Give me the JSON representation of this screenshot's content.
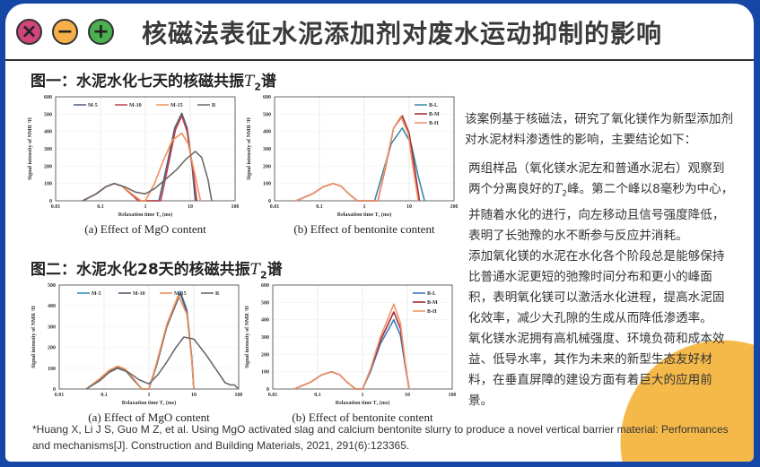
{
  "header": {
    "title": "核磁法表征水泥添加剂对废水运动抑制的影响",
    "buttons": [
      {
        "label": "×",
        "color": "#d0457a"
      },
      {
        "label": "−",
        "color": "#f5b04a"
      },
      {
        "label": "+",
        "color": "#4caf50"
      }
    ]
  },
  "section1": {
    "title": "图一：水泥水化七天的核磁共振",
    "symbol": "T",
    "sub": "2",
    "suffix": "谱"
  },
  "section2": {
    "title": "图二：水泥水化28天的核磁共振",
    "symbol": "T",
    "sub": "2",
    "suffix": "谱"
  },
  "text": {
    "intro": "该案例基于核磁法，研究了氧化镁作为新型添加剂对水泥材料渗透性的影响，主要结论如下：",
    "p1a": "两组样品（氧化镁水泥左和普通水泥右）观察到两个分离良好的",
    "p1sym": "T",
    "p1sub": "2",
    "p1b": "峰。第二个峰以8毫秒为中心，并随着水化的进行，向左移动且信号强度降低，表明了长弛豫的水不断参与反应并消耗。",
    "p2": "添加氧化镁的水泥在水化各个阶段总是能够保持比普通水泥更短的弛豫时间分布和更小的峰面积，表明氧化镁可以激活水化进程，提高水泥固化效率，减少大孔隙的生成从而降低渗透率。",
    "p3": "氧化镁水泥拥有高机械强度、环境负荷和成本效益、低导水率，其作为未来的新型生态友好材料，在垂直屏障的建设方面有着巨大的应用前景。"
  },
  "reference": "*Huang X,  Li J S,  Guo M Z, et al. Using MgO activated slag and calcium bentonite slurry to produce a novel vertical barrier material: Performances and mechanisms[J]. Construction and Building Materials, 2021, 291(6):123365.",
  "chart_data": [
    {
      "type": "line",
      "title": "(a) Effect of MgO content",
      "xlabel": "Relaxation time T₂ (ms)",
      "ylabel": "Signal intensity of NMR ¹H",
      "xscale": "log",
      "xlim": [
        0.01,
        100
      ],
      "ylim": [
        0,
        600
      ],
      "xticks": [
        "0.01",
        "0.1",
        "1",
        "10",
        "100"
      ],
      "yticks": [
        "0",
        "100",
        "200",
        "300",
        "400",
        "500",
        "600"
      ],
      "grid": true,
      "legend": "top",
      "series": [
        {
          "name": "M-5",
          "color": "#4a5f7a",
          "points": [
            [
              0.04,
              0
            ],
            [
              0.08,
              40
            ],
            [
              0.13,
              80
            ],
            [
              0.2,
              100
            ],
            [
              0.3,
              85
            ],
            [
              0.45,
              45
            ],
            [
              0.7,
              0
            ],
            [
              2,
              0
            ],
            [
              3,
              200
            ],
            [
              4.5,
              420
            ],
            [
              6.5,
              505
            ],
            [
              8.5,
              420
            ],
            [
              11,
              200
            ],
            [
              13,
              0
            ]
          ]
        },
        {
          "name": "M-10",
          "color": "#c0404a",
          "points": [
            [
              0.04,
              0
            ],
            [
              0.08,
              40
            ],
            [
              0.13,
              80
            ],
            [
              0.2,
              100
            ],
            [
              0.3,
              85
            ],
            [
              0.45,
              45
            ],
            [
              0.7,
              0
            ],
            [
              2.2,
              0
            ],
            [
              3.2,
              200
            ],
            [
              4.7,
              410
            ],
            [
              6.5,
              490
            ],
            [
              8.5,
              400
            ],
            [
              11.5,
              180
            ],
            [
              14,
              0
            ]
          ]
        },
        {
          "name": "M-15",
          "color": "#f0905a",
          "points": [
            [
              0.04,
              0
            ],
            [
              0.08,
              40
            ],
            [
              0.13,
              80
            ],
            [
              0.2,
              100
            ],
            [
              0.3,
              85
            ],
            [
              0.5,
              40
            ],
            [
              0.8,
              0
            ],
            [
              1,
              0
            ],
            [
              1.6,
              100
            ],
            [
              2.5,
              230
            ],
            [
              4,
              350
            ],
            [
              6.5,
              390
            ],
            [
              9,
              330
            ],
            [
              12,
              180
            ],
            [
              17,
              0
            ]
          ]
        },
        {
          "name": "R",
          "color": "#6a6a6a",
          "points": [
            [
              0.04,
              0
            ],
            [
              0.08,
              40
            ],
            [
              0.13,
              80
            ],
            [
              0.2,
              100
            ],
            [
              0.35,
              80
            ],
            [
              0.6,
              50
            ],
            [
              1,
              40
            ],
            [
              1.6,
              70
            ],
            [
              3,
              130
            ],
            [
              5,
              180
            ],
            [
              8,
              240
            ],
            [
              13,
              285
            ],
            [
              18,
              250
            ],
            [
              25,
              120
            ],
            [
              30,
              0
            ]
          ]
        }
      ]
    },
    {
      "type": "line",
      "title": "(b) Effect of bentonite content",
      "xlabel": "Relaxation time T₂ (ms)",
      "ylabel": "Signal intensity of NMR ¹H",
      "xscale": "log",
      "xlim": [
        0.01,
        100
      ],
      "ylim": [
        0,
        600
      ],
      "xticks": [
        "0.01",
        "0.1",
        "1",
        "10",
        "100"
      ],
      "yticks": [
        "0",
        "100",
        "200",
        "300",
        "400",
        "500",
        "600"
      ],
      "grid": true,
      "legend": "top-right",
      "series": [
        {
          "name": "B-L",
          "color": "#3a8aa8",
          "points": [
            [
              0.03,
              0
            ],
            [
              0.07,
              40
            ],
            [
              0.12,
              80
            ],
            [
              0.2,
              100
            ],
            [
              0.3,
              85
            ],
            [
              0.45,
              40
            ],
            [
              0.7,
              0
            ],
            [
              1.7,
              0
            ],
            [
              2.5,
              150
            ],
            [
              4,
              330
            ],
            [
              7,
              420
            ],
            [
              11,
              330
            ],
            [
              16,
              140
            ],
            [
              22,
              0
            ]
          ]
        },
        {
          "name": "B-M",
          "color": "#a02a30",
          "points": [
            [
              0.03,
              0
            ],
            [
              0.07,
              40
            ],
            [
              0.12,
              80
            ],
            [
              0.2,
              100
            ],
            [
              0.3,
              85
            ],
            [
              0.45,
              40
            ],
            [
              0.7,
              0
            ],
            [
              2,
              0
            ],
            [
              3,
              200
            ],
            [
              4.5,
              420
            ],
            [
              7,
              490
            ],
            [
              10,
              390
            ],
            [
              13,
              200
            ],
            [
              17,
              0
            ]
          ]
        },
        {
          "name": "B-H",
          "color": "#f0956a",
          "points": [
            [
              0.03,
              0
            ],
            [
              0.07,
              40
            ],
            [
              0.12,
              80
            ],
            [
              0.2,
              100
            ],
            [
              0.3,
              85
            ],
            [
              0.45,
              40
            ],
            [
              0.7,
              0
            ],
            [
              2,
              0
            ],
            [
              3,
              210
            ],
            [
              4.5,
              420
            ],
            [
              6.5,
              485
            ],
            [
              9.5,
              390
            ],
            [
              12,
              200
            ],
            [
              16,
              0
            ]
          ]
        }
      ]
    },
    {
      "type": "line",
      "title": "(a) Effect of MgO content",
      "xlabel": "Relaxation time T₂ (ms)",
      "ylabel": "Signal intensity of NMR ¹H",
      "xscale": "log",
      "xlim": [
        0.01,
        100
      ],
      "ylim": [
        0,
        500
      ],
      "xticks": [
        "0.01",
        "0.1",
        "1",
        "10",
        "100"
      ],
      "yticks": [
        "0",
        "100",
        "200",
        "300",
        "400",
        "500"
      ],
      "grid": true,
      "legend": "top",
      "series": [
        {
          "name": "M-5",
          "color": "#3a8ac0",
          "points": [
            [
              0.04,
              0
            ],
            [
              0.08,
              45
            ],
            [
              0.13,
              85
            ],
            [
              0.2,
              105
            ],
            [
              0.3,
              90
            ],
            [
              0.45,
              45
            ],
            [
              0.7,
              0
            ],
            [
              1,
              0
            ],
            [
              1.5,
              120
            ],
            [
              2.5,
              300
            ],
            [
              5,
              470
            ],
            [
              7,
              380
            ],
            [
              9,
              150
            ],
            [
              10,
              0
            ]
          ]
        },
        {
          "name": "M-10",
          "color": "#555a70",
          "points": [
            [
              0.04,
              0
            ],
            [
              0.08,
              45
            ],
            [
              0.13,
              85
            ],
            [
              0.2,
              105
            ],
            [
              0.3,
              90
            ],
            [
              0.45,
              45
            ],
            [
              0.7,
              0
            ],
            [
              1,
              0
            ],
            [
              1.5,
              120
            ],
            [
              2.5,
              300
            ],
            [
              5,
              460
            ],
            [
              7,
              370
            ],
            [
              9,
              150
            ],
            [
              10,
              0
            ]
          ]
        },
        {
          "name": "M-15",
          "color": "#f0905a",
          "points": [
            [
              0.04,
              0
            ],
            [
              0.08,
              50
            ],
            [
              0.13,
              90
            ],
            [
              0.2,
              110
            ],
            [
              0.3,
              95
            ],
            [
              0.45,
              50
            ],
            [
              0.7,
              0
            ],
            [
              1,
              0
            ],
            [
              1.5,
              130
            ],
            [
              2.5,
              310
            ],
            [
              4.5,
              450
            ],
            [
              7,
              360
            ],
            [
              9,
              140
            ],
            [
              10,
              0
            ]
          ]
        },
        {
          "name": "R",
          "color": "#6a6a6a",
          "points": [
            [
              0.04,
              0
            ],
            [
              0.08,
              40
            ],
            [
              0.13,
              80
            ],
            [
              0.2,
              100
            ],
            [
              0.35,
              80
            ],
            [
              0.6,
              45
            ],
            [
              1,
              25
            ],
            [
              1.6,
              70
            ],
            [
              2.5,
              130
            ],
            [
              4,
              200
            ],
            [
              6,
              250
            ],
            [
              10,
              240
            ],
            [
              18,
              170
            ],
            [
              30,
              100
            ],
            [
              50,
              30
            ],
            [
              65,
              20
            ],
            [
              80,
              20
            ],
            [
              100,
              0
            ]
          ]
        }
      ]
    },
    {
      "type": "line",
      "title": "(b) Effect of bentonite content",
      "xlabel": "Relaxation time T₂ (ms)",
      "ylabel": "Signal intensity of NMR ¹H",
      "xscale": "log",
      "xlim": [
        0.01,
        100
      ],
      "ylim": [
        0,
        600
      ],
      "xticks": [
        "0.01",
        "0.1",
        "1",
        "10",
        "100"
      ],
      "yticks": [
        "0",
        "100",
        "200",
        "300",
        "400",
        "500",
        "600"
      ],
      "grid": true,
      "legend": "top-right",
      "series": [
        {
          "name": "B-L",
          "color": "#3a7ac0",
          "points": [
            [
              0.03,
              0
            ],
            [
              0.07,
              40
            ],
            [
              0.12,
              80
            ],
            [
              0.2,
              100
            ],
            [
              0.3,
              85
            ],
            [
              0.45,
              40
            ],
            [
              0.7,
              0
            ],
            [
              1,
              0
            ],
            [
              1.5,
              100
            ],
            [
              2.5,
              260
            ],
            [
              5,
              400
            ],
            [
              7,
              310
            ],
            [
              9,
              130
            ],
            [
              11,
              0
            ]
          ]
        },
        {
          "name": "B-M",
          "color": "#a02a30",
          "points": [
            [
              0.03,
              0
            ],
            [
              0.07,
              40
            ],
            [
              0.12,
              80
            ],
            [
              0.2,
              100
            ],
            [
              0.3,
              85
            ],
            [
              0.45,
              40
            ],
            [
              0.7,
              0
            ],
            [
              1,
              0
            ],
            [
              1.5,
              110
            ],
            [
              2.5,
              280
            ],
            [
              5,
              445
            ],
            [
              7,
              350
            ],
            [
              9,
              140
            ],
            [
              11,
              0
            ]
          ]
        },
        {
          "name": "B-H",
          "color": "#f0956a",
          "points": [
            [
              0.03,
              0
            ],
            [
              0.07,
              40
            ],
            [
              0.12,
              80
            ],
            [
              0.2,
              100
            ],
            [
              0.3,
              85
            ],
            [
              0.45,
              40
            ],
            [
              0.7,
              0
            ],
            [
              1,
              0
            ],
            [
              1.5,
              115
            ],
            [
              2.5,
              300
            ],
            [
              5,
              490
            ],
            [
              7,
              380
            ],
            [
              9,
              150
            ],
            [
              11,
              0
            ]
          ]
        }
      ]
    }
  ]
}
